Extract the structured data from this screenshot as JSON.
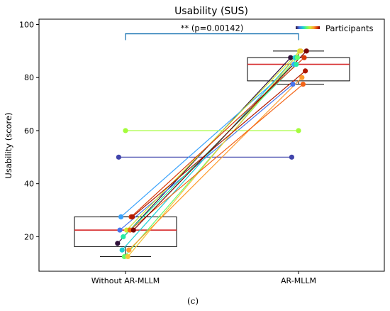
{
  "chart_data": {
    "type": "box-with-paired-points",
    "title": "Usability (SUS)",
    "ylabel": "Usability (score)",
    "xlabel": "",
    "categories": [
      "Without AR-MLLM",
      "AR-MLLM"
    ],
    "ylim": [
      7,
      102
    ],
    "yticks": [
      20,
      40,
      60,
      80,
      100
    ],
    "grid": false,
    "legend": {
      "label": "Participants",
      "placement": "top-right"
    },
    "significance": {
      "text": "** (p=0.00142)",
      "y": 96.5
    },
    "boxes": [
      {
        "category": "Without AR-MLLM",
        "q1": 16.25,
        "median": 22.5,
        "q3": 27.5,
        "whisker_low": 12.5,
        "whisker_high": 27.5
      },
      {
        "category": "AR-MLLM",
        "q1": 78.75,
        "median": 85,
        "q3": 87.5,
        "whisker_low": 77.5,
        "whisker_high": 90
      }
    ],
    "participants": [
      {
        "id": 1,
        "color": "#30123b",
        "without": 17.5,
        "with": 87.5
      },
      {
        "id": 2,
        "color": "#4145ab",
        "without": 50.0,
        "with": 50.0
      },
      {
        "id": 3,
        "color": "#4675ed",
        "without": 22.5,
        "with": 77.5
      },
      {
        "id": 4,
        "color": "#39a2fc",
        "without": 27.5,
        "with": 85.0
      },
      {
        "id": 5,
        "color": "#1bcfd4",
        "without": 15.0,
        "with": 87.5
      },
      {
        "id": 6,
        "color": "#24eca6",
        "without": 20.0,
        "with": 85.0
      },
      {
        "id": 7,
        "color": "#61fc6c",
        "without": 12.5,
        "with": 87.5
      },
      {
        "id": 8,
        "color": "#a4fc3b",
        "without": 60.0,
        "with": 60.0
      },
      {
        "id": 9,
        "color": "#d1e834",
        "without": 22.5,
        "with": 90.0
      },
      {
        "id": 10,
        "color": "#f3c63a",
        "without": 12.5,
        "with": 90.0
      },
      {
        "id": 11,
        "color": "#fe9b2d",
        "without": 15.0,
        "with": 80.0
      },
      {
        "id": 12,
        "color": "#f36315",
        "without": 22.5,
        "with": 77.5
      },
      {
        "id": 13,
        "color": "#d93806",
        "without": 27.5,
        "with": 87.5
      },
      {
        "id": 14,
        "color": "#b11901",
        "without": 27.5,
        "with": 82.5
      },
      {
        "id": 15,
        "color": "#7a0403",
        "without": 22.5,
        "with": 90.0
      }
    ]
  },
  "caption": "(c)",
  "colors": {
    "box_edge": "#000000",
    "median": "#d62728",
    "bracket": "#1f77b4"
  }
}
